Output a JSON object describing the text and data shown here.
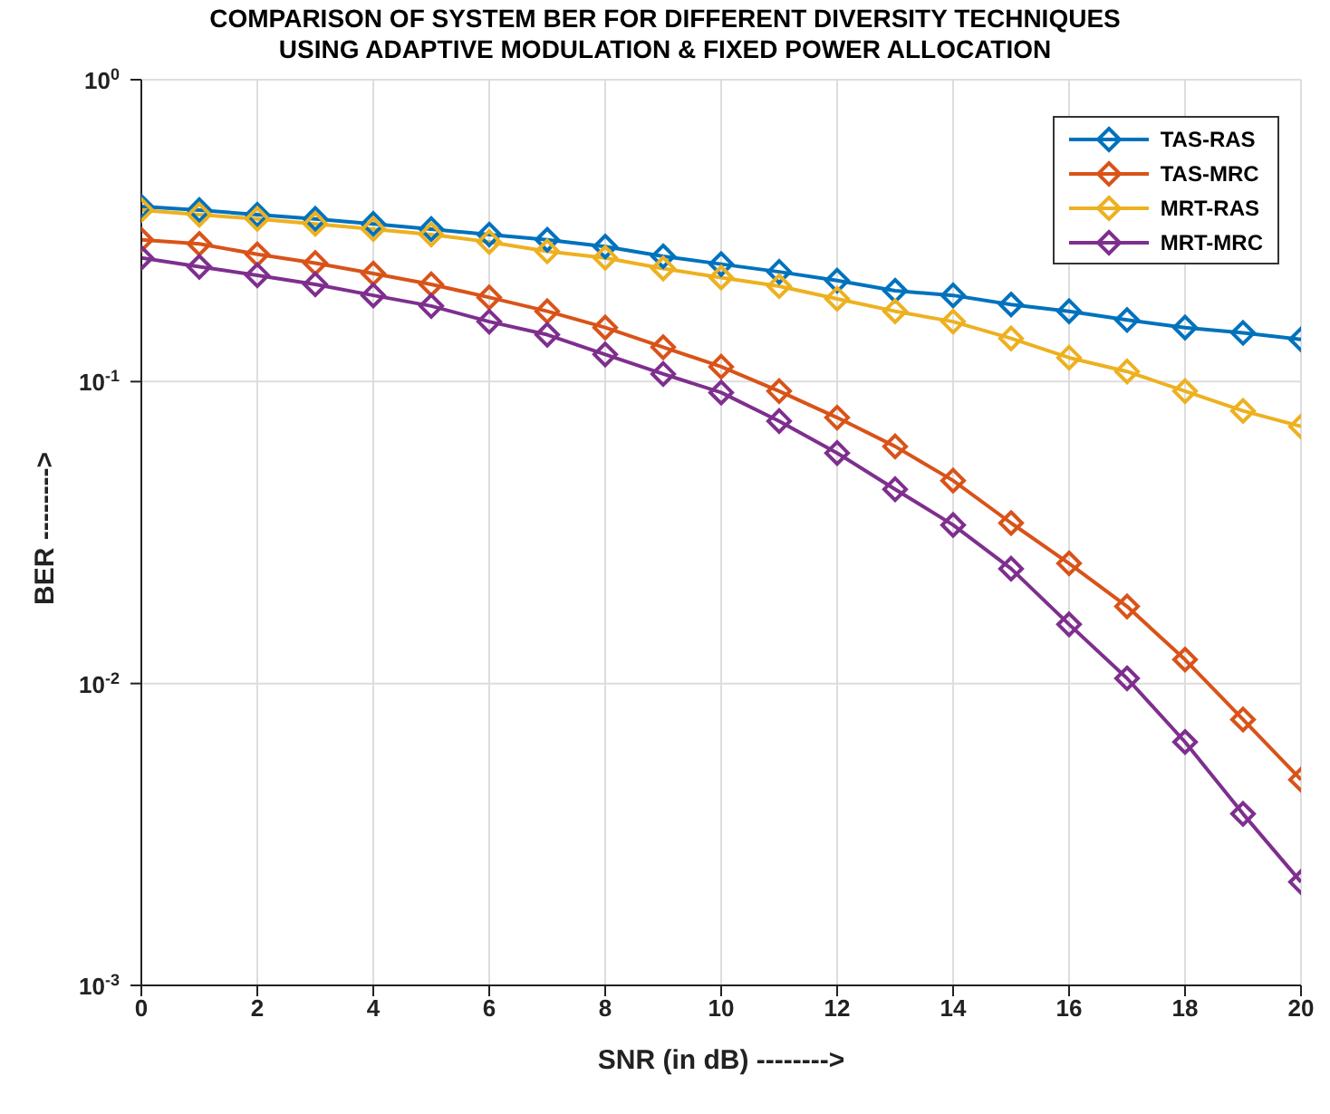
{
  "chart_data": {
    "type": "line",
    "title": "COMPARISON OF SYSTEM BER FOR DIFFERENT DIVERSITY TECHNIQUES\nUSING ADAPTIVE MODULATION & FIXED POWER ALLOCATION",
    "xlabel": "SNR (in dB) -------->",
    "ylabel": "BER -------->",
    "x": [
      0,
      1,
      2,
      3,
      4,
      5,
      6,
      7,
      8,
      9,
      10,
      11,
      12,
      13,
      14,
      15,
      16,
      17,
      18,
      19,
      20
    ],
    "series": [
      {
        "name": "TAS-RAS",
        "color": "#0072bd",
        "values": [
          0.38,
          0.37,
          0.357,
          0.346,
          0.333,
          0.32,
          0.307,
          0.295,
          0.28,
          0.26,
          0.245,
          0.231,
          0.216,
          0.2,
          0.193,
          0.18,
          0.171,
          0.16,
          0.151,
          0.145,
          0.138
        ]
      },
      {
        "name": "TAS-MRC",
        "color": "#d95319",
        "values": [
          0.295,
          0.286,
          0.264,
          0.247,
          0.228,
          0.21,
          0.19,
          0.171,
          0.151,
          0.13,
          0.112,
          0.093,
          0.076,
          0.061,
          0.047,
          0.034,
          0.025,
          0.018,
          0.012,
          0.0076,
          0.0048
        ]
      },
      {
        "name": "MRT-RAS",
        "color": "#edb120",
        "values": [
          0.37,
          0.357,
          0.346,
          0.333,
          0.32,
          0.307,
          0.29,
          0.27,
          0.257,
          0.237,
          0.221,
          0.207,
          0.188,
          0.171,
          0.158,
          0.139,
          0.12,
          0.108,
          0.093,
          0.08,
          0.071
        ]
      },
      {
        "name": "MRT-MRC",
        "color": "#7e2f8e",
        "values": [
          0.257,
          0.24,
          0.225,
          0.21,
          0.193,
          0.178,
          0.158,
          0.143,
          0.123,
          0.106,
          0.092,
          0.074,
          0.058,
          0.044,
          0.0335,
          0.024,
          0.0157,
          0.0104,
          0.0064,
          0.0037,
          0.0022
        ]
      }
    ],
    "xlim": [
      0,
      20
    ],
    "xticks": [
      0,
      2,
      4,
      6,
      8,
      10,
      12,
      14,
      16,
      18,
      20
    ],
    "ylim": [
      0.001,
      1
    ],
    "yticks": [
      {
        "value": 0.001,
        "label": "10$^{-3}$"
      },
      {
        "value": 0.01,
        "label": "10$^{-2}$"
      },
      {
        "value": 0.1,
        "label": "10$^{-1}$"
      },
      {
        "value": 1,
        "label": "10$^{0}$"
      }
    ],
    "log": true,
    "grid": true,
    "legend": "top right",
    "marker": "diamond",
    "line_style": "solid"
  }
}
